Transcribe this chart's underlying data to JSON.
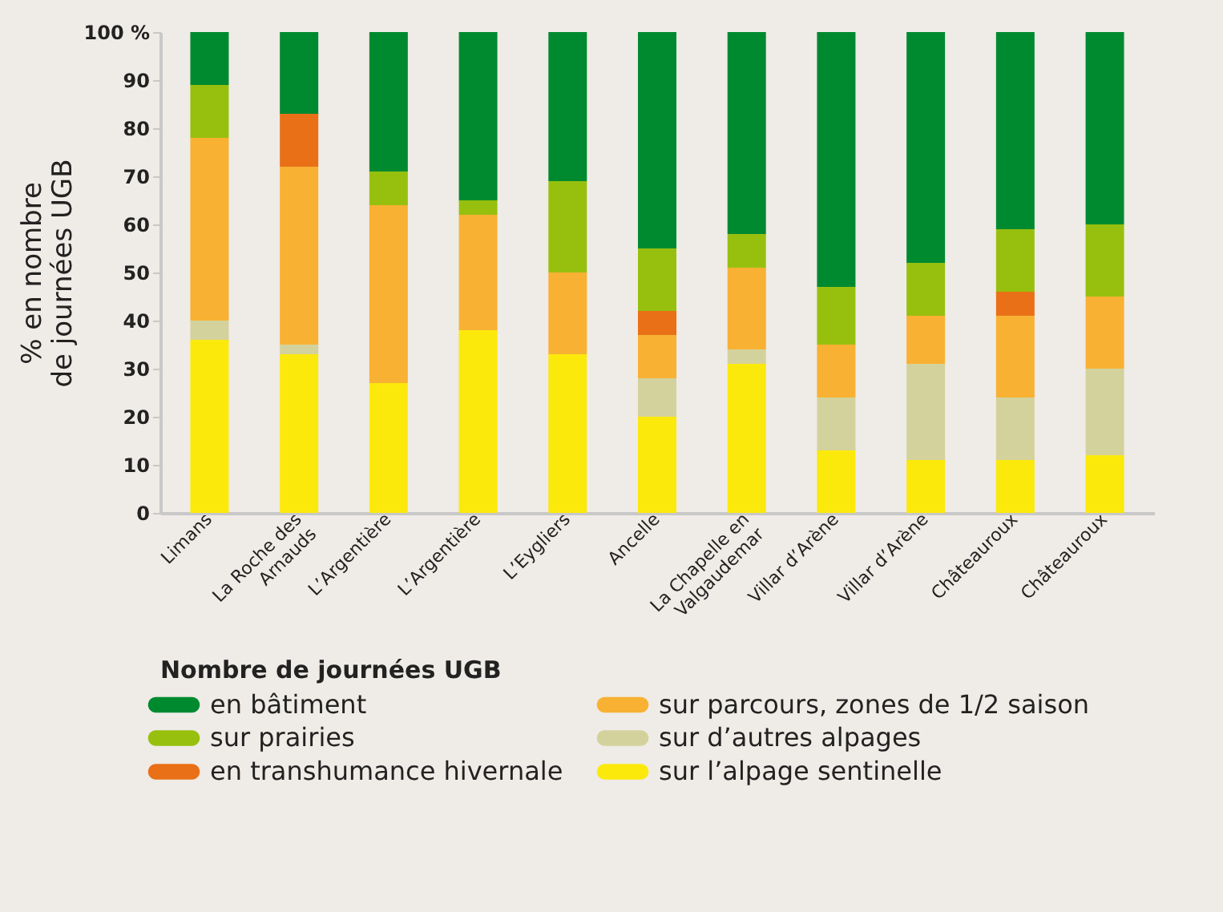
{
  "chart_data": {
    "type": "bar",
    "stacked": true,
    "ylabel": "% en nombre\nde journées UGB",
    "legend_title": "Nombre de journées UGB",
    "legend": "bottom",
    "grid": false,
    "categories": [
      "Limans",
      "La Roche des\nArnauds",
      "L’Argentière",
      "L’Argentière",
      "L’Eygliers",
      "Ancelle",
      "La Chapelle en\nValgaudemar",
      "Villar d’Arène",
      "Villar d’Arène",
      "Châteauroux",
      "Châteauroux"
    ],
    "ylim": [
      0,
      100
    ],
    "yticks": [
      0,
      10,
      20,
      30,
      40,
      50,
      60,
      70,
      80,
      90,
      {
        "value": 100,
        "label": "100 %"
      }
    ],
    "series": [
      {
        "name": "sur l’alpage sentinelle",
        "color": "#fce90c",
        "values": [
          36,
          33,
          27,
          38,
          33,
          20,
          31,
          13,
          11,
          11,
          12
        ]
      },
      {
        "name": "sur d’autres alpages",
        "color": "#d4d29c",
        "values": [
          4,
          2,
          0,
          0,
          0,
          8,
          3,
          11,
          20,
          13,
          18
        ]
      },
      {
        "name": "sur parcours, zones de 1/2 saison",
        "color": "#f8b133",
        "values": [
          38,
          37,
          37,
          24,
          17,
          9,
          17,
          11,
          10,
          17,
          15
        ]
      },
      {
        "name": "en transhumance hivernale",
        "color": "#e97016",
        "values": [
          0,
          11,
          0,
          0,
          0,
          5,
          0,
          0,
          0,
          5,
          0
        ]
      },
      {
        "name": "sur prairies",
        "color": "#97c00e",
        "values": [
          11,
          0,
          7,
          3,
          19,
          13,
          7,
          12,
          11,
          13,
          15
        ]
      },
      {
        "name": "en bâtiment",
        "color": "#008a30",
        "values": [
          11,
          17,
          29,
          35,
          31,
          45,
          42,
          53,
          48,
          41,
          40
        ]
      }
    ]
  }
}
